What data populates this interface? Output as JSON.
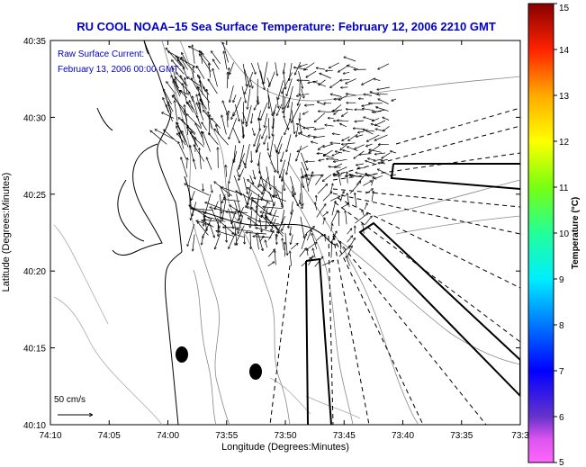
{
  "title": "RU COOL  NOAA–15  Sea Surface Temperature:  February 12, 2006 2210 GMT",
  "legend": {
    "line1": "Raw Surface Current:",
    "line2": "February 13, 2006 00:00 GMT"
  },
  "scale": {
    "label": "50 cm/s"
  },
  "xaxis": {
    "label": "Longitude (Degrees:Minutes)",
    "ticks": [
      "74:10",
      "74:05",
      "74:00",
      "73:55",
      "73:50",
      "73:45",
      "73:40",
      "73:35",
      "73:3"
    ]
  },
  "yaxis": {
    "label": "Latitude (Degrees:Minutes)",
    "ticks": [
      "40:35",
      "40:30",
      "40:25",
      "40:20",
      "40:15",
      "40:10"
    ]
  },
  "colorbar": {
    "label": "Temperature (°C)",
    "ticks": [
      "15",
      "14",
      "13",
      "12",
      "11",
      "10",
      "9",
      "8",
      "7",
      "6",
      "5"
    ],
    "min": 5,
    "max": 15
  },
  "colors": {
    "title": "#0000cc",
    "colormap": [
      "#ff66ff",
      "#6633cc",
      "#0000ff",
      "#0099ff",
      "#00ffff",
      "#33ff99",
      "#99ff00",
      "#ffff00",
      "#ffaa00",
      "#ff3300",
      "#cc0000",
      "#990000"
    ]
  }
}
